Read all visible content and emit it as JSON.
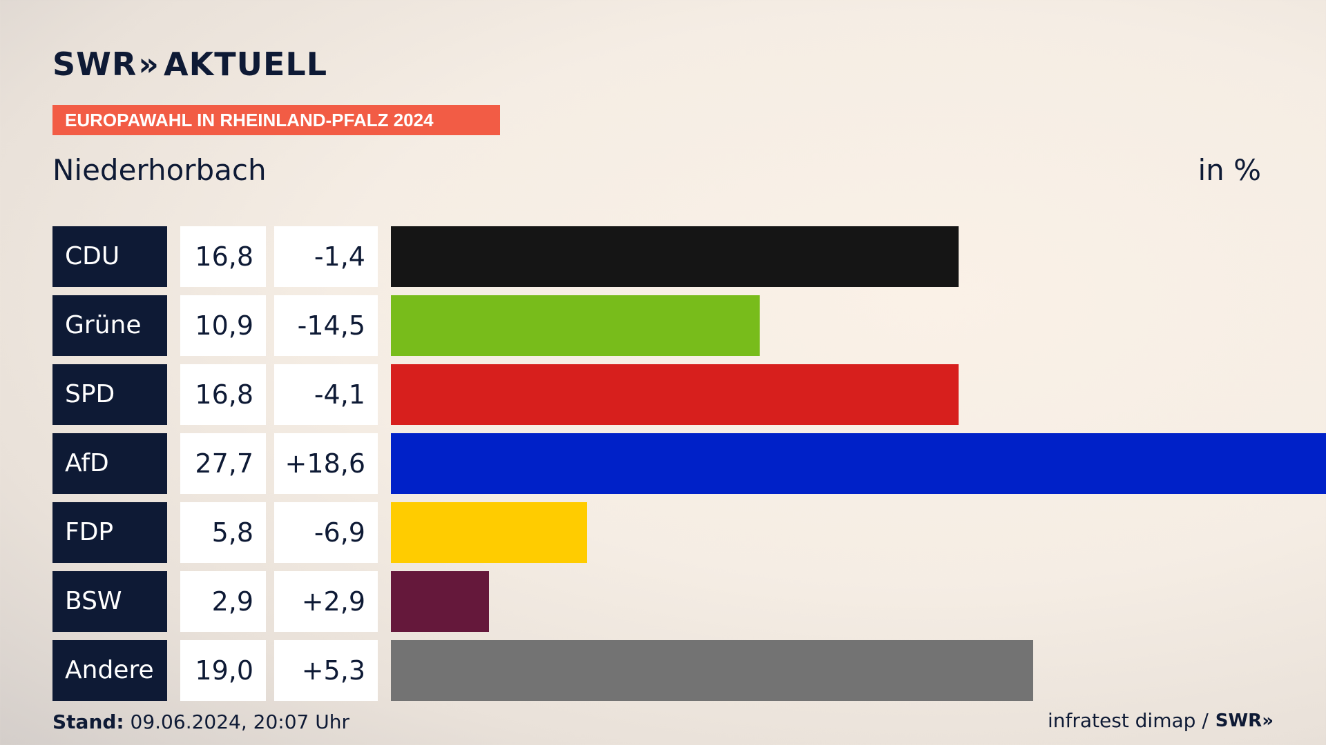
{
  "header": {
    "logo": "SWR",
    "logo_chevrons": "»",
    "logo_suffix": "AKTUELL",
    "badge": "EUROPAWAHL IN RHEINLAND-PFALZ 2024",
    "place": "Niederhorbach",
    "unit": "in %"
  },
  "chart_data": {
    "type": "bar",
    "orientation": "horizontal",
    "title": "EUROPAWAHL IN RHEINLAND-PFALZ 2024",
    "subtitle": "Niederhorbach",
    "unit": "in %",
    "categories": [
      "CDU",
      "Grüne",
      "SPD",
      "AfD",
      "FDP",
      "BSW",
      "Andere"
    ],
    "values": [
      16.8,
      10.9,
      16.8,
      27.7,
      5.8,
      2.9,
      19.0
    ],
    "value_labels": [
      "16,8",
      "10,9",
      "16,8",
      "27,7",
      "5,8",
      "2,9",
      "19,0"
    ],
    "diff_labels": [
      "-1,4",
      "-14,5",
      "-4,1",
      "+18,6",
      "-6,9",
      "+2,9",
      "+5,3"
    ],
    "diffs": [
      -1.4,
      -14.5,
      -4.1,
      18.6,
      -6.9,
      2.9,
      5.3
    ],
    "colors": [
      "#151515",
      "#78bc1b",
      "#d71f1d",
      "#0021c8",
      "#ffcc00",
      "#65183b",
      "#737373"
    ],
    "xlim": [
      0,
      27.7
    ]
  },
  "footer": {
    "stand_label": "Stand:",
    "stand_value": "09.06.2024, 20:07 Uhr",
    "source": "infratest dimap /",
    "source_logo": "SWR",
    "source_chevrons": "»"
  }
}
